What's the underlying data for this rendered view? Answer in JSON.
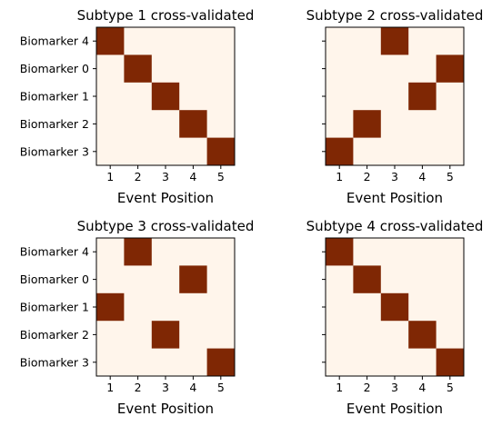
{
  "colors": {
    "background_cell": "#fff5eb",
    "event_cell": "#7f2704",
    "frame": "#000000"
  },
  "chart_data": [
    {
      "type": "heatmap",
      "title": "Subtype 1 cross-validated",
      "xlabel": "Event Position",
      "x_ticks": [
        "1",
        "2",
        "3",
        "4",
        "5"
      ],
      "y_ticks": [
        "Biomarker 4",
        "Biomarker 0",
        "Biomarker 1",
        "Biomarker 2",
        "Biomarker 3"
      ],
      "show_y_labels": true,
      "event_positions": [
        1,
        2,
        3,
        4,
        5
      ]
    },
    {
      "type": "heatmap",
      "title": "Subtype 2 cross-validated",
      "xlabel": "Event Position",
      "x_ticks": [
        "1",
        "2",
        "3",
        "4",
        "5"
      ],
      "y_ticks": [
        "Biomarker 4",
        "Biomarker 0",
        "Biomarker 1",
        "Biomarker 2",
        "Biomarker 3"
      ],
      "show_y_labels": false,
      "event_positions": [
        3,
        5,
        4,
        2,
        1
      ]
    },
    {
      "type": "heatmap",
      "title": "Subtype 3 cross-validated",
      "xlabel": "Event Position",
      "x_ticks": [
        "1",
        "2",
        "3",
        "4",
        "5"
      ],
      "y_ticks": [
        "Biomarker 4",
        "Biomarker 0",
        "Biomarker 1",
        "Biomarker 2",
        "Biomarker 3"
      ],
      "show_y_labels": true,
      "event_positions": [
        2,
        4,
        1,
        3,
        5
      ]
    },
    {
      "type": "heatmap",
      "title": "Subtype 4 cross-validated",
      "xlabel": "Event Position",
      "x_ticks": [
        "1",
        "2",
        "3",
        "4",
        "5"
      ],
      "y_ticks": [
        "Biomarker 4",
        "Biomarker 0",
        "Biomarker 1",
        "Biomarker 2",
        "Biomarker 3"
      ],
      "show_y_labels": false,
      "event_positions": [
        1,
        2,
        3,
        4,
        5
      ]
    }
  ]
}
